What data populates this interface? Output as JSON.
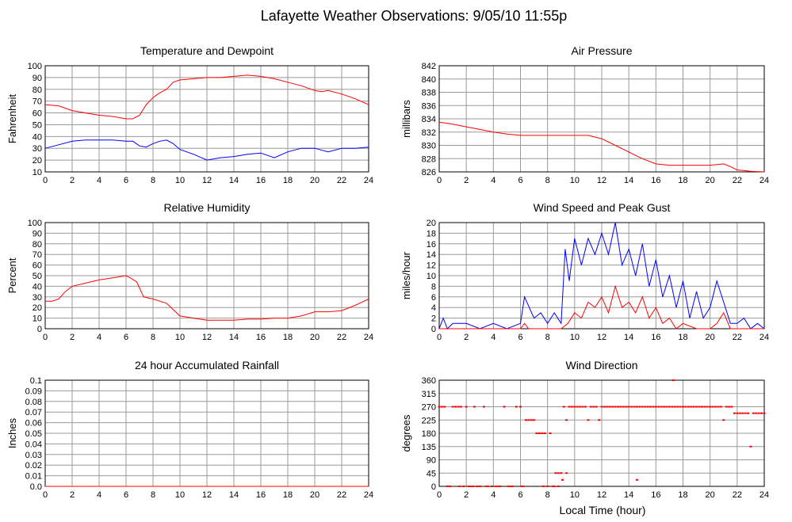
{
  "title": "Lafayette Weather Observations: 9/05/10 11:55p",
  "xlabel": "Local Time (hour)",
  "colors": {
    "red": "#ff0000",
    "blue": "#0000ff",
    "grid": "#999999"
  },
  "chart_data": [
    {
      "id": "temp",
      "type": "line",
      "title": "Temperature and Dewpoint",
      "ylabel": "Fahrenheit",
      "xlim": [
        0,
        24
      ],
      "ylim": [
        10,
        100
      ],
      "yticks": [
        10,
        20,
        30,
        40,
        50,
        60,
        70,
        80,
        90,
        100
      ],
      "xticks": [
        0,
        2,
        4,
        6,
        8,
        10,
        12,
        14,
        16,
        18,
        20,
        22,
        24
      ],
      "series": [
        {
          "color": "#ff0000",
          "x": [
            0,
            1,
            2,
            3,
            4,
            5,
            6,
            6.5,
            7,
            7.5,
            8,
            8.5,
            9,
            9.5,
            10,
            11,
            12,
            13,
            14,
            15,
            16,
            17,
            18,
            19,
            20,
            20.5,
            21,
            22,
            23,
            24
          ],
          "y": [
            67,
            66,
            62,
            60,
            58,
            57,
            55,
            55,
            58,
            67,
            73,
            77,
            80,
            86,
            88,
            89,
            90,
            90,
            91,
            92,
            91,
            89,
            86,
            83,
            79,
            78,
            79,
            76,
            72,
            67
          ]
        },
        {
          "color": "#0000ff",
          "x": [
            0,
            1,
            2,
            3,
            4,
            5,
            6,
            6.5,
            7,
            7.5,
            8,
            8.5,
            9,
            9.5,
            10,
            11,
            12,
            13,
            14,
            15,
            16,
            17,
            18,
            19,
            20,
            21,
            22,
            23,
            24
          ],
          "y": [
            30,
            33,
            36,
            37,
            37,
            37,
            36,
            36,
            32,
            31,
            34,
            36,
            37,
            34,
            29,
            25,
            20,
            22,
            23,
            25,
            26,
            22,
            27,
            30,
            30,
            27,
            30,
            30,
            31
          ]
        }
      ]
    },
    {
      "id": "pressure",
      "type": "line",
      "title": "Air Pressure",
      "ylabel": "millibars",
      "xlim": [
        0,
        24
      ],
      "ylim": [
        826,
        842
      ],
      "yticks": [
        826,
        828,
        830,
        832,
        834,
        836,
        838,
        840,
        842
      ],
      "xticks": [
        0,
        2,
        4,
        6,
        8,
        10,
        12,
        14,
        16,
        18,
        20,
        22,
        24
      ],
      "series": [
        {
          "color": "#ff0000",
          "x": [
            0,
            1,
            2,
            3,
            4,
            5,
            6,
            7,
            8,
            9,
            10,
            11,
            12,
            13,
            14,
            15,
            16,
            17,
            18,
            19,
            20,
            21,
            21.5,
            22,
            23,
            24
          ],
          "y": [
            833.5,
            833.2,
            832.8,
            832.4,
            832.0,
            831.7,
            831.5,
            831.5,
            831.5,
            831.5,
            831.5,
            831.5,
            831.0,
            830.0,
            829.0,
            828.0,
            827.2,
            827.0,
            827.0,
            827.0,
            827.0,
            827.2,
            826.8,
            826.3,
            826.1,
            826.0
          ]
        }
      ]
    },
    {
      "id": "humidity",
      "type": "line",
      "title": "Relative Humidity",
      "ylabel": "Percent",
      "xlim": [
        0,
        24
      ],
      "ylim": [
        0,
        100
      ],
      "yticks": [
        0,
        10,
        20,
        30,
        40,
        50,
        60,
        70,
        80,
        90,
        100
      ],
      "xticks": [
        0,
        2,
        4,
        6,
        8,
        10,
        12,
        14,
        16,
        18,
        20,
        22,
        24
      ],
      "series": [
        {
          "color": "#ff0000",
          "x": [
            0,
            0.5,
            1,
            1.5,
            2,
            3,
            4,
            5,
            6,
            6.3,
            6.8,
            7.3,
            8,
            8.5,
            9,
            9.5,
            10,
            11,
            12,
            13,
            14,
            15,
            16,
            17,
            18,
            19,
            20,
            21,
            22,
            23,
            24
          ],
          "y": [
            26,
            26,
            28,
            35,
            40,
            43,
            46,
            48,
            50,
            48,
            44,
            30,
            28,
            26,
            24,
            18,
            12,
            10,
            8,
            8,
            8,
            9,
            9,
            10,
            10,
            12,
            16,
            16,
            17,
            22,
            28
          ]
        }
      ]
    },
    {
      "id": "wind",
      "type": "line",
      "title": "Wind Speed and Peak Gust",
      "ylabel": "miles/hour",
      "xlim": [
        0,
        24
      ],
      "ylim": [
        0,
        20
      ],
      "yticks": [
        0,
        2,
        4,
        6,
        8,
        10,
        12,
        14,
        16,
        18,
        20
      ],
      "xticks": [
        0,
        2,
        4,
        6,
        8,
        10,
        12,
        14,
        16,
        18,
        20,
        22,
        24
      ],
      "series": [
        {
          "color": "#0000ff",
          "x": [
            0,
            0.3,
            0.6,
            1,
            2,
            3,
            4,
            5,
            6,
            6.3,
            7,
            7.5,
            8,
            8.5,
            9,
            9.3,
            9.6,
            10,
            10.5,
            11,
            11.5,
            12,
            12.5,
            13,
            13.5,
            14,
            14.5,
            15,
            15.5,
            16,
            16.5,
            17,
            17.5,
            18,
            18.5,
            19,
            19.5,
            20,
            20.5,
            21,
            21.5,
            22,
            22.5,
            23,
            23.5,
            24
          ],
          "y": [
            0,
            2,
            0,
            1,
            1,
            0,
            1,
            0,
            1,
            6,
            2,
            3,
            1,
            3,
            1,
            15,
            9,
            17,
            12,
            17,
            14,
            18,
            14,
            20,
            12,
            15,
            10,
            16,
            8,
            13,
            6,
            10,
            4,
            9,
            2,
            7,
            2,
            4,
            9,
            5,
            1,
            1,
            2,
            0,
            1,
            0
          ]
        },
        {
          "color": "#ff0000",
          "x": [
            0,
            6,
            6.3,
            6.6,
            7,
            8,
            9,
            9.5,
            10,
            10.5,
            11,
            11.5,
            12,
            12.5,
            13,
            13.5,
            14,
            14.5,
            15,
            15.5,
            16,
            16.5,
            17,
            17.5,
            18,
            19,
            20,
            20.5,
            21,
            21.5,
            22,
            24
          ],
          "y": [
            0,
            0,
            1,
            0,
            0,
            0,
            0,
            1,
            3,
            2,
            5,
            4,
            6,
            3,
            8,
            4,
            5,
            3,
            6,
            2,
            4,
            1,
            2,
            0,
            1,
            0,
            0,
            1,
            3,
            0,
            0,
            0
          ]
        }
      ]
    },
    {
      "id": "rain",
      "type": "line",
      "title": "24 hour Accumulated Rainfall",
      "ylabel": "Inches",
      "xlim": [
        0,
        24
      ],
      "ylim": [
        0,
        0.1
      ],
      "yticks": [
        "0.0",
        "0.01",
        "0.02",
        "0.03",
        "0.04",
        "0.05",
        "0.06",
        "0.07",
        "0.08",
        "0.09",
        "0.1"
      ],
      "xticks": [
        0,
        2,
        4,
        6,
        8,
        10,
        12,
        14,
        16,
        18,
        20,
        22,
        24
      ],
      "series": [
        {
          "color": "#ff0000",
          "x": [
            0,
            24
          ],
          "y": [
            0,
            0
          ]
        }
      ]
    },
    {
      "id": "winddir",
      "type": "scatter",
      "title": "Wind Direction",
      "ylabel": "degrees",
      "xlim": [
        0,
        24
      ],
      "ylim": [
        0,
        360
      ],
      "yticks": [
        0,
        45,
        90,
        135,
        180,
        225,
        270,
        315,
        360
      ],
      "xticks": [
        0,
        2,
        4,
        6,
        8,
        10,
        12,
        14,
        16,
        18,
        20,
        22,
        24
      ],
      "series": [
        {
          "color": "#ff0000",
          "x": [
            0,
            0.2,
            0.4,
            0.6,
            0.8,
            1.0,
            1.2,
            1.4,
            1.6,
            1.8,
            2.0,
            2.2,
            2.4,
            2.6,
            2.8,
            3.0,
            3.3,
            3.6,
            3.9,
            4.2,
            4.5,
            4.8,
            5.1,
            5.4,
            5.7,
            6.0,
            6.2,
            6.4,
            6.6,
            6.8,
            7.0,
            7.2,
            7.4,
            7.6,
            7.8,
            8.0,
            8.2,
            8.4,
            8.6,
            8.8,
            9.0,
            9.2,
            9.4,
            9.6,
            9.8,
            10.0,
            10.2,
            10.4,
            10.6,
            10.8,
            11.0,
            11.2,
            11.4,
            11.6,
            11.8,
            12.0,
            12.2,
            12.4,
            12.6,
            12.8,
            13.0,
            13.2,
            13.4,
            13.6,
            13.8,
            14.0,
            14.2,
            14.4,
            14.6,
            14.8,
            15.0,
            15.2,
            15.4,
            15.6,
            15.8,
            16.0,
            16.2,
            16.4,
            16.6,
            16.8,
            17.0,
            17.2,
            17.4,
            17.6,
            17.8,
            18.0,
            18.2,
            18.4,
            18.6,
            18.8,
            19.0,
            19.2,
            19.4,
            19.6,
            19.8,
            20.0,
            20.2,
            20.4,
            20.6,
            20.8,
            21.0,
            21.2,
            21.4,
            21.6,
            21.8,
            22.0,
            22.2,
            22.4,
            22.6,
            22.8,
            23.0,
            23.2,
            23.4,
            23.6,
            23.8,
            24.0,
            0.7,
            1.5,
            2.5,
            3.5,
            4.4,
            5.2,
            6.1,
            7.7,
            8.5,
            8.8,
            9.1,
            9.4,
            14.6,
            17.3
          ],
          "y": [
            270,
            270,
            270,
            0,
            0,
            270,
            270,
            270,
            270,
            0,
            270,
            0,
            0,
            270,
            0,
            0,
            270,
            0,
            0,
            0,
            0,
            270,
            0,
            0,
            270,
            270,
            0,
            225,
            225,
            225,
            225,
            180,
            180,
            180,
            180,
            0,
            180,
            0,
            45,
            45,
            45,
            270,
            225,
            270,
            270,
            270,
            270,
            270,
            270,
            270,
            225,
            270,
            270,
            270,
            225,
            270,
            270,
            270,
            270,
            270,
            270,
            270,
            270,
            270,
            270,
            270,
            270,
            270,
            270,
            270,
            270,
            270,
            270,
            270,
            270,
            270,
            270,
            270,
            270,
            270,
            270,
            270,
            270,
            270,
            270,
            270,
            270,
            270,
            270,
            270,
            270,
            270,
            270,
            270,
            270,
            270,
            270,
            270,
            270,
            270,
            225,
            270,
            270,
            270,
            248,
            248,
            248,
            248,
            248,
            248,
            135,
            248,
            248,
            248,
            248,
            248,
            0,
            0,
            0,
            0,
            0,
            0,
            0,
            0,
            0,
            0,
            22,
            45,
            22,
            360
          ]
        }
      ]
    }
  ]
}
